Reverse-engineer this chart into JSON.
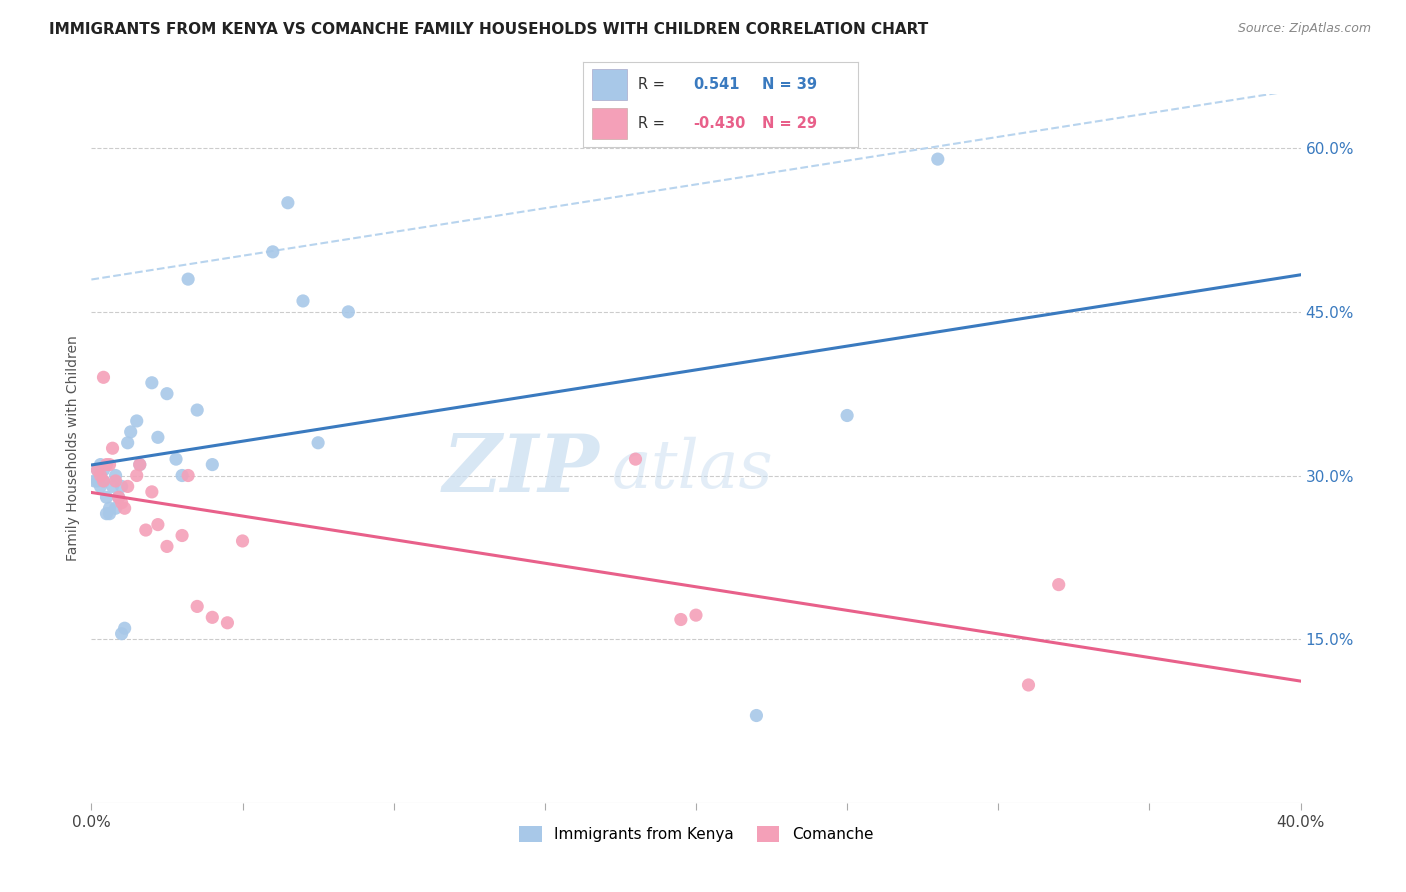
{
  "title": "IMMIGRANTS FROM KENYA VS COMANCHE FAMILY HOUSEHOLDS WITH CHILDREN CORRELATION CHART",
  "source": "Source: ZipAtlas.com",
  "ylabel": "Family Households with Children",
  "xlim": [
    0.0,
    0.4
  ],
  "ylim": [
    0.0,
    0.65
  ],
  "x_ticks": [
    0.0,
    0.05,
    0.1,
    0.15,
    0.2,
    0.25,
    0.3,
    0.35,
    0.4
  ],
  "y_ticks_right": [
    0.15,
    0.3,
    0.45,
    0.6
  ],
  "y_tick_labels_right": [
    "15.0%",
    "30.0%",
    "45.0%",
    "60.0%"
  ],
  "blue_color": "#a8c8e8",
  "pink_color": "#f4a0b8",
  "blue_line_color": "#3a7abf",
  "pink_line_color": "#e8608a",
  "dashed_line_color": "#b8d4ee",
  "watermark_zip": "ZIP",
  "watermark_atlas": "atlas",
  "kenya_x": [
    0.001,
    0.002,
    0.002,
    0.003,
    0.003,
    0.003,
    0.004,
    0.004,
    0.005,
    0.005,
    0.006,
    0.006,
    0.007,
    0.008,
    0.008,
    0.009,
    0.01,
    0.01,
    0.011,
    0.012,
    0.013,
    0.015,
    0.016,
    0.02,
    0.022,
    0.025,
    0.028,
    0.03,
    0.032,
    0.035,
    0.04,
    0.06,
    0.065,
    0.07,
    0.075,
    0.085,
    0.22,
    0.25,
    0.28
  ],
  "kenya_y": [
    0.295,
    0.305,
    0.295,
    0.29,
    0.3,
    0.31,
    0.295,
    0.305,
    0.265,
    0.28,
    0.265,
    0.27,
    0.29,
    0.27,
    0.3,
    0.28,
    0.29,
    0.155,
    0.16,
    0.33,
    0.34,
    0.35,
    0.31,
    0.385,
    0.335,
    0.375,
    0.315,
    0.3,
    0.48,
    0.36,
    0.31,
    0.505,
    0.55,
    0.46,
    0.33,
    0.45,
    0.08,
    0.355,
    0.59
  ],
  "comanche_x": [
    0.002,
    0.003,
    0.004,
    0.004,
    0.005,
    0.006,
    0.007,
    0.008,
    0.009,
    0.01,
    0.011,
    0.012,
    0.015,
    0.016,
    0.018,
    0.02,
    0.022,
    0.025,
    0.03,
    0.032,
    0.035,
    0.04,
    0.045,
    0.05,
    0.18,
    0.195,
    0.2,
    0.31,
    0.32
  ],
  "comanche_y": [
    0.305,
    0.3,
    0.39,
    0.295,
    0.31,
    0.31,
    0.325,
    0.295,
    0.28,
    0.275,
    0.27,
    0.29,
    0.3,
    0.31,
    0.25,
    0.285,
    0.255,
    0.235,
    0.245,
    0.3,
    0.18,
    0.17,
    0.165,
    0.24,
    0.315,
    0.168,
    0.172,
    0.108,
    0.2
  ],
  "background_color": "#ffffff",
  "grid_color": "#cccccc",
  "legend_blue_r": "0.541",
  "legend_blue_n": "39",
  "legend_pink_r": "-0.430",
  "legend_pink_n": "29"
}
